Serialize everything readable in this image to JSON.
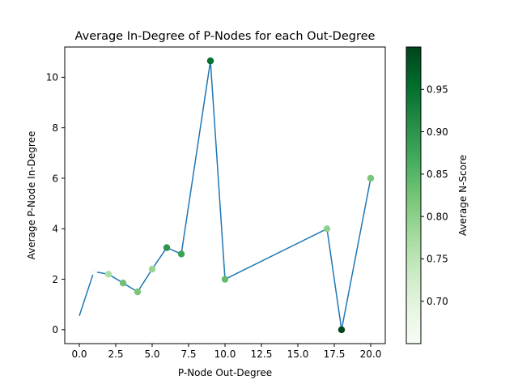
{
  "chart_data": {
    "type": "scatter",
    "title": "Average In-Degree of P-Nodes for each Out-Degree",
    "xlabel": "P-Node Out-Degree",
    "ylabel": "Average P-Node In-Degree",
    "xlim": [
      -1,
      21
    ],
    "ylim": [
      -0.55,
      11.2
    ],
    "x_ticks": [
      0.0,
      2.5,
      5.0,
      7.5,
      10.0,
      12.5,
      15.0,
      17.5,
      20.0
    ],
    "x_tick_labels": [
      "0.0",
      "2.5",
      "5.0",
      "7.5",
      "10.0",
      "12.5",
      "15.0",
      "17.5",
      "20.0"
    ],
    "y_ticks": [
      0,
      2,
      4,
      6,
      8,
      10
    ],
    "y_tick_labels": [
      "0",
      "2",
      "4",
      "6",
      "8",
      "10"
    ],
    "line_color": "#1f77b4",
    "colormap": "Greens",
    "colorbar": {
      "label": "Average N-Score",
      "min": 0.65,
      "max": 1.0,
      "ticks": [
        0.7,
        0.75,
        0.8,
        0.85,
        0.9,
        0.95
      ],
      "tick_labels": [
        "0.70",
        "0.75",
        "0.80",
        "0.85",
        "0.90",
        "0.95"
      ]
    },
    "points": [
      {
        "x": 0,
        "y": 0.55,
        "score": null
      },
      {
        "x": 1,
        "y": 2.3,
        "score": 0.65
      },
      {
        "x": 2,
        "y": 2.2,
        "score": 0.77
      },
      {
        "x": 3,
        "y": 1.85,
        "score": 0.83
      },
      {
        "x": 4,
        "y": 1.5,
        "score": 0.82
      },
      {
        "x": 5,
        "y": 2.4,
        "score": 0.79
      },
      {
        "x": 6,
        "y": 3.25,
        "score": 0.9
      },
      {
        "x": 7,
        "y": 3.0,
        "score": 0.88
      },
      {
        "x": 9,
        "y": 10.65,
        "score": 0.95
      },
      {
        "x": 10,
        "y": 2.0,
        "score": 0.84
      },
      {
        "x": 17,
        "y": 4.0,
        "score": 0.8
      },
      {
        "x": 18,
        "y": 0.0,
        "score": 1.0
      },
      {
        "x": 20,
        "y": 6.0,
        "score": 0.82
      }
    ]
  }
}
